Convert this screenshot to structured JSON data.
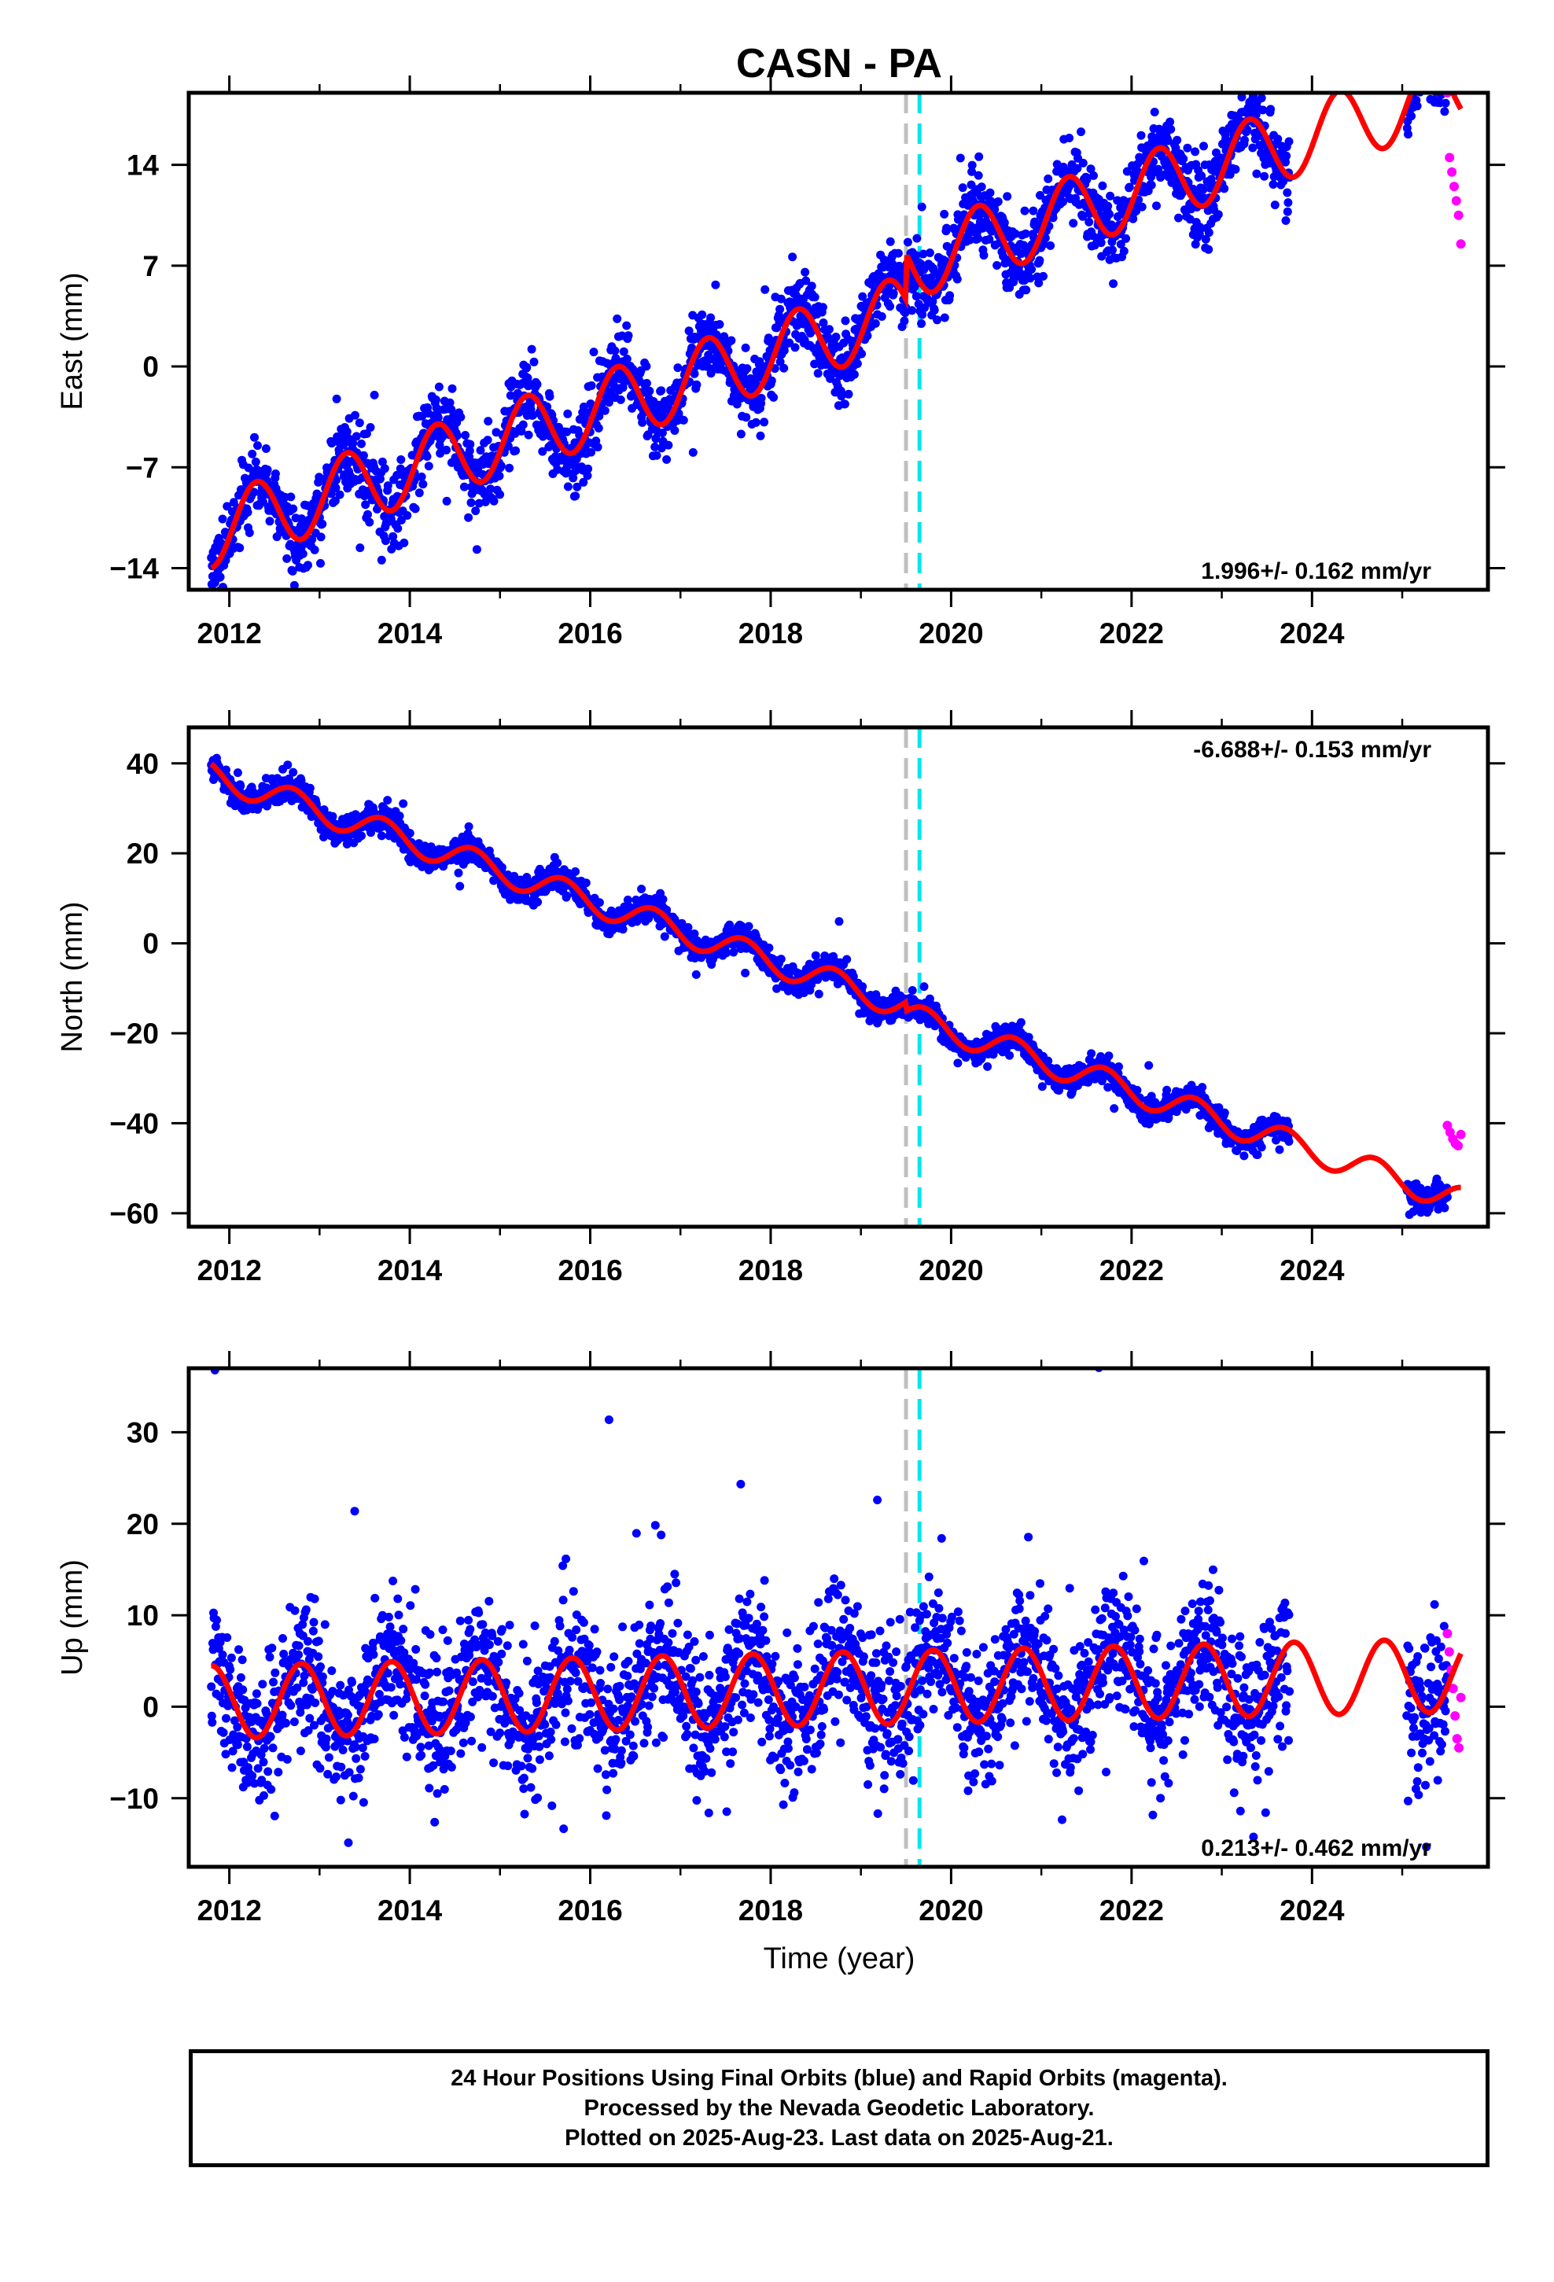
{
  "title": "CASN - PA",
  "xlabel": "Time (year)",
  "footer": {
    "line1": "24 Hour Positions Using Final Orbits (blue) and Rapid Orbits (magenta).",
    "line2": "Processed by the Nevada Geodetic Laboratory.",
    "line3": "Plotted on 2025-Aug-23. Last data on 2025-Aug-21."
  },
  "colors": {
    "final_orbits": "#0000ff",
    "rapid_orbits": "#ff00ff",
    "model_fit": "#ff0000",
    "event_gray": "#c0c0c0",
    "event_cyan": "#00e5ee"
  },
  "chart_data": [
    {
      "type": "scatter",
      "component": "east",
      "ylabel": "East (mm)",
      "xlim": [
        2011.55,
        2025.95
      ],
      "ylim": [
        -15.5,
        19
      ],
      "xticks": [
        2012,
        2014,
        2016,
        2018,
        2020,
        2022,
        2024
      ],
      "yticks": [
        -14,
        -7,
        0,
        7,
        14
      ],
      "rate_label": "1.996+/- 0.162 mm/yr",
      "rate_label_position": "bottom-right",
      "trend_start": [
        2011.8,
        -11.5
      ],
      "trend_rate": 1.996,
      "seasonal_amplitude": 2.5,
      "seasonal_phase": 0.05,
      "scatter_noise": 1.3,
      "steps": [
        {
          "x": 2019.5,
          "dy": 3.2
        }
      ],
      "final_range": [
        2011.8,
        2023.75
      ],
      "final_range2": [
        2025.05,
        2025.5
      ],
      "rapid_range": [
        2025.5,
        2025.65
      ],
      "rapid_values": [
        19.0,
        14.5,
        13.5,
        12.5,
        11.5,
        10.5,
        8.5
      ]
    },
    {
      "type": "scatter",
      "component": "north",
      "ylabel": "North (mm)",
      "xlim": [
        2011.55,
        2025.95
      ],
      "ylim": [
        -63,
        48
      ],
      "xticks": [
        2012,
        2014,
        2016,
        2018,
        2020,
        2022,
        2024
      ],
      "yticks": [
        -60,
        -40,
        -20,
        0,
        20,
        40
      ],
      "rate_label": "-6.688+/- 0.153 mm/yr",
      "rate_label_position": "top-right",
      "trend_start": [
        2011.8,
        37.5
      ],
      "trend_rate": -6.688,
      "seasonal_amplitude": 3.0,
      "seasonal_phase": 0.45,
      "scatter_noise": 1.5,
      "steps": [
        {
          "x": 2019.5,
          "dy": -2.0
        }
      ],
      "final_range": [
        2011.8,
        2023.75
      ],
      "final_range2": [
        2025.05,
        2025.5
      ],
      "rapid_range": [
        2025.5,
        2025.65
      ],
      "rapid_values": [
        -40.5,
        -42.0,
        -43.5,
        -44.5,
        -45.0,
        -42.5
      ]
    },
    {
      "type": "scatter",
      "component": "up",
      "ylabel": "Up (mm)",
      "xlim": [
        2011.55,
        2025.95
      ],
      "ylim": [
        -17.5,
        37
      ],
      "xticks": [
        2012,
        2014,
        2016,
        2018,
        2020,
        2022,
        2024
      ],
      "yticks": [
        -10,
        0,
        10,
        20,
        30
      ],
      "rate_label": "0.213+/- 0.462 mm/yr",
      "rate_label_position": "bottom-right",
      "trend_start": [
        2011.8,
        0.5
      ],
      "trend_rate": 0.213,
      "seasonal_amplitude": 4.0,
      "seasonal_phase": 0.55,
      "scatter_noise": 3.8,
      "steps": [],
      "final_range": [
        2011.8,
        2023.75
      ],
      "final_range2": [
        2025.05,
        2025.5
      ],
      "rapid_range": [
        2025.5,
        2025.65
      ],
      "rapid_values": [
        8.0,
        6.0,
        4.0,
        2.0,
        -1.0,
        -3.5,
        -4.5,
        1.0
      ]
    }
  ],
  "events": [
    {
      "x": 2019.5,
      "color": "gray"
    },
    {
      "x": 2019.65,
      "color": "cyan"
    }
  ]
}
